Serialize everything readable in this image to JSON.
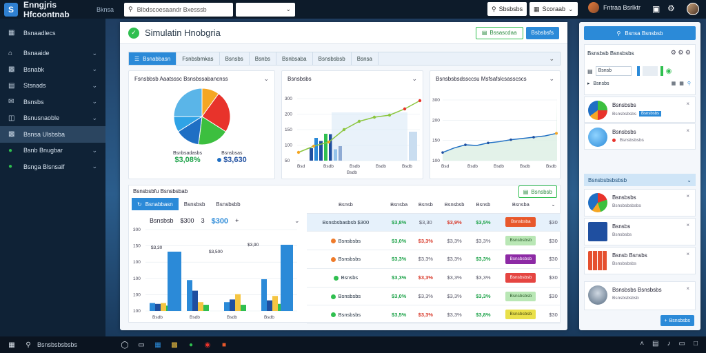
{
  "topbar": {
    "app_title": "Enngjris Hfcoontnab",
    "app_sub": "Bknsa",
    "search_placeholder": "Blbdscoesaandr Bxesssb",
    "btn1_label": "Sbsbsbs",
    "btn2_label": "Scoraab",
    "user_name": "Fntraa Bsrlktr"
  },
  "sidebar": {
    "items": [
      {
        "label": "Bsnaadlecs",
        "icon": "grid-icon"
      },
      {
        "label": "Bsnaaide",
        "icon": "home-icon"
      },
      {
        "label": "Bsnabk",
        "icon": "folder-icon"
      },
      {
        "label": "Stsnads",
        "icon": "document-icon"
      },
      {
        "label": "Bsnsbs",
        "icon": "mail-icon"
      },
      {
        "label": "Bsnusnaoble",
        "icon": "chart-icon"
      },
      {
        "label": "Bsnsa Ulsbsba",
        "icon": "folder-open-icon",
        "active": true
      },
      {
        "label": "Bsnb Bnugbar",
        "icon": "leaf-icon"
      },
      {
        "label": "Bsnga Blsnsalf",
        "icon": "chart-bar-icon"
      }
    ]
  },
  "main": {
    "title": "Simulatin Hnobgria",
    "btn_green": "Bssascdaa",
    "btn_blue": "Bsbsbsfs",
    "tabs": [
      "Bsnabbasn",
      "Fsnbsbmkas",
      "Bsnsbs",
      "Bsnbs",
      "Bsnbsaba",
      "Bsnsbsbsb",
      "Bsnsa"
    ],
    "card1": {
      "title": "Fsnsbbsb Aaatsssc Bsnsbssabancnss",
      "leg_left": "Bsnbsadasbs",
      "val_left": "$3,08%",
      "leg_right": "Bsnsbsas",
      "val_right": "$3,630"
    },
    "card2": {
      "title": "Bsnsbsbs",
      "xlabel": "Bsdb",
      "yticks": [
        "300",
        "200",
        "150",
        "100",
        "50"
      ],
      "xticks": [
        "Bsd",
        "Bsdb",
        "Bsdb",
        "Bsdb",
        "Bsdb"
      ]
    },
    "card3": {
      "title": "Bsnsbsbsdssccsu Msfsafslcsasscscs",
      "yticks": [
        "300",
        "200",
        "150",
        "100"
      ],
      "xticks": [
        "Bsd",
        "Bsdb",
        "Bsdb",
        "Bsdb",
        "Bsdb"
      ]
    },
    "bottom": {
      "title": "Bsnsbsbfu Bsnsbsbab",
      "btn": "Bsnsbsb",
      "subtabs": [
        "Bsnabbasn",
        "Bsnsbsb",
        "Bsnsbsbb"
      ],
      "mini_label": "Bsnsbsb",
      "mini_v1": "$300",
      "mini_v2": "$300",
      "mini_v2b": "3",
      "bar_yticks": [
        "300",
        "150",
        "100",
        "100",
        "100",
        "100"
      ],
      "bar_xticks": [
        "Bsdb",
        "Bsdb",
        "Bsdb",
        "Bsdb"
      ],
      "bar_labels": [
        "$3,30",
        "$3,500",
        "$3,90"
      ],
      "columns": [
        "Bsnsb",
        "Bsnsba",
        "Bsnsb",
        "Bsnsbsb",
        "Bsnsb",
        "Bsnsba",
        ""
      ],
      "rows": [
        {
          "name": "Bsnsbsbasbsb $300",
          "c1": "$3,8%",
          "c2": "$3,30",
          "c3": "$3,9%",
          "c4": "$3,5%",
          "chip": "Bsnsbsba",
          "chip_color": "#e8582b",
          "chip_text": "#ffffff",
          "last": "$30",
          "dot": "",
          "c1c": "green",
          "c2c": "gray",
          "c3c": "red",
          "c4c": "green",
          "sel": true
        },
        {
          "name": "Bsnsbsbs",
          "c1": "$3,0%",
          "c2": "$3,3%",
          "c3": "$3,3%",
          "c4": "$3,3%",
          "chip": "Bsnsbsbsb",
          "chip_color": "#b9e7b5",
          "chip_text": "#2a5a2a",
          "last": "$30",
          "dot": "#ef7b2a",
          "c1c": "green",
          "c2c": "red",
          "c3c": "gray",
          "c4c": "gray",
          "sel": false
        },
        {
          "name": "Bsnsbsbs",
          "c1": "$3,3%",
          "c2": "$3,3%",
          "c3": "$3,3%",
          "c4": "$3,3%",
          "chip": "Bsnsbsbsb",
          "chip_color": "#8d2aa5",
          "chip_text": "#ffffff",
          "last": "$30",
          "dot": "#ef7b2a",
          "c1c": "green",
          "c2c": "gray",
          "c3c": "gray",
          "c4c": "green",
          "sel": false
        },
        {
          "name": "Bsnsbs",
          "c1": "$3,3%",
          "c2": "$3,3%",
          "c3": "$3,3%",
          "c4": "$3,3%",
          "chip": "Bsnsbsbsb",
          "chip_color": "#e54541",
          "chip_text": "#ffffff",
          "last": "$30",
          "dot": "#2fbf4f",
          "c1c": "green",
          "c2c": "red",
          "c3c": "gray",
          "c4c": "gray",
          "sel": false
        },
        {
          "name": "Bsnsbsbs",
          "c1": "$3,0%",
          "c2": "$3,3%",
          "c3": "$3,3%",
          "c4": "$3,3%",
          "chip": "Bsnsbsbsb",
          "chip_color": "#b9e7b5",
          "chip_text": "#2a5a2a",
          "last": "$30",
          "dot": "#2fbf4f",
          "c1c": "green",
          "c2c": "gray",
          "c3c": "gray",
          "c4c": "green",
          "sel": false
        },
        {
          "name": "Bsnsbsbs",
          "c1": "$3,5%",
          "c2": "$3,3%",
          "c3": "$3,3%",
          "c4": "$3,8%",
          "chip": "Bsnsbsbsb",
          "chip_color": "#e9e04a",
          "chip_text": "#4a4a10",
          "last": "$30",
          "dot": "#2fbf4f",
          "c1c": "green",
          "c2c": "red",
          "c3c": "gray",
          "c4c": "green",
          "sel": false
        }
      ]
    }
  },
  "right": {
    "top_btn": "Bsnsa Bsnsbsb",
    "filter_title": "Bsnsbsb Bsnsbsbs",
    "filter_label": "Bsnsb",
    "search_label": "Bsnsbs",
    "head": "Bsnsbsbsbsbsb",
    "items": [
      {
        "t1": "Bsnsbsbs",
        "t2": "Bsnsbsbsbs",
        "tag": "Bsnsbsbs",
        "kind": "pie"
      },
      {
        "t1": "Bsnsbsbs",
        "t2": "Bsnsbsbsbs",
        "kind": "globe"
      },
      {
        "t1": "Bsnsbsbs",
        "t2": "Bsnsbsbsbsbs",
        "kind": "pie2"
      },
      {
        "t1": "Bsnsbs",
        "t2": "Bsnsbsbs",
        "kind": "doc"
      },
      {
        "t1": "Bsnsb Bsnsbs",
        "t2": "Bsnsbsbsbs",
        "kind": "grid"
      },
      {
        "t1": "Bsnsbsbs Bsnsbsbs",
        "t2": "Bsnsbsbsbsb",
        "kind": "avatar"
      }
    ],
    "foot_btn": "Bsnsbsbs"
  },
  "taskbar": {
    "search": "Bsnsbsbsbsbs"
  },
  "chart_data": [
    {
      "type": "pie",
      "title": "Fsnsbbsb Aaatsssc Bsnsbssabancnss",
      "series": [
        {
          "values": [
            10,
            24,
            18,
            14,
            9,
            25
          ]
        }
      ],
      "colors": [
        "#f5a623",
        "#e8332b",
        "#3cbf3f",
        "#1f6fc4",
        "#2fa3e6",
        "#5ab5e8"
      ]
    },
    {
      "type": "bar",
      "title": "Bsnsbsbs",
      "series": [
        {
          "values": [
            60,
            110,
            95,
            130,
            128,
            55,
            70,
            0
          ]
        }
      ],
      "line": [
        40,
        70,
        90,
        150,
        190,
        210,
        220,
        250,
        290
      ],
      "ylim": [
        0,
        300
      ]
    },
    {
      "type": "line",
      "title": "Bsnsbsbsdssccsu Msfsafslcsasscscs",
      "series": [
        {
          "values": [
            10,
            45,
            70,
            65,
            85,
            95,
            110,
            120,
            130,
            140,
            160
          ]
        }
      ],
      "ylim": [
        0,
        300
      ]
    },
    {
      "type": "bar",
      "title": "Bsnsbsbfu Bsnsbsbab",
      "series": [
        {
          "name": "",
          "values": [
            45,
            175,
            50,
            180
          ]
        },
        {
          "name": "",
          "values": [
            40,
            115,
            65,
            60
          ]
        },
        {
          "name": "",
          "values": [
            45,
            50,
            95,
            85
          ]
        },
        {
          "name": "",
          "values": [
            30,
            35,
            35,
            40
          ]
        }
      ],
      "ylim": [
        0,
        300
      ]
    }
  ]
}
